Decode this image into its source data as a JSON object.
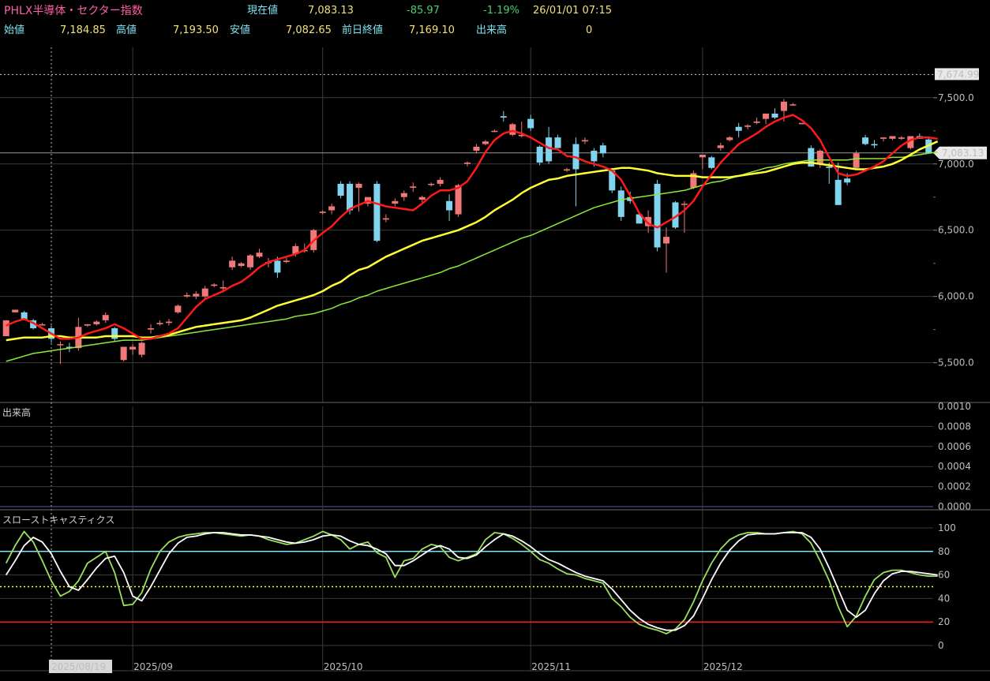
{
  "header": {
    "title": "PHLX半導体・セクター指数",
    "current_label": "現在値",
    "current_value": "7,083.13",
    "change": "-85.97",
    "change_pct": "-1.19%",
    "datetime": "26/01/01  07:15",
    "open_label": "始値",
    "open_value": "7,184.85",
    "high_label": "高値",
    "high_value": "7,193.50",
    "low_label": "安値",
    "low_value": "7,082.65",
    "prev_close_label": "前日終値",
    "prev_close_value": "7,169.10",
    "volume_label": "出来高",
    "volume_value": "0"
  },
  "colors": {
    "up": "#f07878",
    "down": "#80d4ef",
    "ma5": "#ff1a1a",
    "ma25": "#ffff33",
    "ma75": "#8ee83a",
    "k_line": "#9be05e",
    "d_line": "#ffffff",
    "grid": "#3a3a3a"
  },
  "chart_data": [
    {
      "type": "candlestick",
      "name": "price",
      "ylim": [
        5200,
        7880
      ],
      "y_ticks": [
        5500,
        6000,
        6500,
        7000,
        7500
      ],
      "y_tick_labels": [
        "5,500.0",
        "6,000.0",
        "6,500.0",
        "7,000.0",
        "7,500.0"
      ],
      "high_marker_label": "7,674.99",
      "high_marker_value": 7674.99,
      "last_price_label": "7,083.13",
      "last_price_value": 7083.13,
      "x_labels": [
        {
          "label": "2025/08/19",
          "index": 5
        },
        {
          "label": "2025/09",
          "index": 14
        },
        {
          "label": "2025/10",
          "index": 35
        },
        {
          "label": "2025/11",
          "index": 58
        },
        {
          "label": "2025/12",
          "index": 77
        }
      ],
      "ohlc": [
        [
          5700,
          5820,
          5700,
          5820
        ],
        [
          5880,
          5900,
          5880,
          5900
        ],
        [
          5880,
          5890,
          5820,
          5820
        ],
        [
          5820,
          5830,
          5750,
          5760
        ],
        [
          5790,
          5800,
          5780,
          5790
        ],
        [
          5760,
          5780,
          5650,
          5680
        ],
        [
          5640,
          5660,
          5490,
          5640
        ],
        [
          5620,
          5650,
          5580,
          5610
        ],
        [
          5610,
          5840,
          5590,
          5770
        ],
        [
          5780,
          5790,
          5770,
          5790
        ],
        [
          5790,
          5820,
          5780,
          5810
        ],
        [
          5820,
          5880,
          5800,
          5860
        ],
        [
          5760,
          5770,
          5660,
          5680
        ],
        [
          5520,
          5620,
          5510,
          5620
        ],
        [
          5600,
          5640,
          5560,
          5620
        ],
        [
          5560,
          5660,
          5540,
          5650
        ],
        [
          5750,
          5790,
          5720,
          5760
        ],
        [
          5790,
          5820,
          5780,
          5800
        ],
        [
          5800,
          5830,
          5780,
          5810
        ],
        [
          5880,
          5940,
          5870,
          5930
        ],
        [
          6000,
          6030,
          5990,
          6010
        ],
        [
          6000,
          6040,
          5980,
          6020
        ],
        [
          6000,
          6080,
          5980,
          6060
        ],
        [
          6080,
          6100,
          6070,
          6090
        ],
        [
          6060,
          6120,
          6030,
          6070
        ],
        [
          6220,
          6300,
          6200,
          6270
        ],
        [
          6230,
          6260,
          6220,
          6250
        ],
        [
          6220,
          6320,
          6200,
          6310
        ],
        [
          6300,
          6360,
          6290,
          6330
        ],
        [
          6260,
          6290,
          6220,
          6260
        ],
        [
          6270,
          6300,
          6140,
          6180
        ],
        [
          6260,
          6290,
          6250,
          6270
        ],
        [
          6320,
          6400,
          6300,
          6380
        ],
        [
          6350,
          6400,
          6330,
          6350
        ],
        [
          6350,
          6510,
          6330,
          6500
        ],
        [
          6630,
          6650,
          6620,
          6640
        ],
        [
          6650,
          6700,
          6620,
          6680
        ],
        [
          6850,
          6870,
          6740,
          6760
        ],
        [
          6850,
          6870,
          6620,
          6650
        ],
        [
          6820,
          6860,
          6640,
          6850
        ],
        [
          6700,
          6750,
          6680,
          6750
        ],
        [
          6850,
          6870,
          6410,
          6420
        ],
        [
          6580,
          6620,
          6560,
          6590
        ],
        [
          6700,
          6740,
          6680,
          6720
        ],
        [
          6750,
          6800,
          6720,
          6780
        ],
        [
          6820,
          6860,
          6790,
          6830
        ],
        [
          6730,
          6760,
          6710,
          6750
        ],
        [
          6850,
          6860,
          6830,
          6850
        ],
        [
          6850,
          6900,
          6830,
          6880
        ],
        [
          6720,
          6770,
          6570,
          6650
        ],
        [
          6620,
          6850,
          6600,
          6840
        ],
        [
          7000,
          7020,
          6980,
          7010
        ],
        [
          7100,
          7150,
          7080,
          7130
        ],
        [
          7150,
          7180,
          7140,
          7170
        ],
        [
          7250,
          7260,
          7240,
          7250
        ],
        [
          7360,
          7400,
          7320,
          7350
        ],
        [
          7220,
          7310,
          7210,
          7300
        ],
        [
          7210,
          7320,
          7200,
          7220
        ],
        [
          7340,
          7370,
          7250,
          7270
        ],
        [
          7130,
          7140,
          6990,
          7010
        ],
        [
          7200,
          7280,
          7000,
          7020
        ],
        [
          7200,
          7220,
          7120,
          7120
        ],
        [
          6950,
          6970,
          6940,
          6960
        ],
        [
          7150,
          7200,
          6680,
          6960
        ],
        [
          7170,
          7200,
          7150,
          7180
        ],
        [
          7100,
          7120,
          6980,
          7020
        ],
        [
          7140,
          7160,
          7050,
          7080
        ],
        [
          6950,
          6970,
          6780,
          6800
        ],
        [
          6800,
          6830,
          6570,
          6600
        ],
        [
          6750,
          6790,
          6700,
          6720
        ],
        [
          6620,
          6640,
          6550,
          6550
        ],
        [
          6530,
          6650,
          6480,
          6600
        ],
        [
          6850,
          6880,
          6340,
          6370
        ],
        [
          6400,
          6520,
          6180,
          6450
        ],
        [
          6710,
          6720,
          6510,
          6520
        ],
        [
          6700,
          6720,
          6480,
          6700
        ],
        [
          6820,
          6950,
          6810,
          6930
        ],
        [
          7050,
          7070,
          6960,
          7070
        ],
        [
          7050,
          7060,
          6960,
          6970
        ],
        [
          7120,
          7160,
          7100,
          7140
        ],
        [
          7180,
          7210,
          7170,
          7200
        ],
        [
          7280,
          7310,
          7200,
          7250
        ],
        [
          7280,
          7300,
          7260,
          7290
        ],
        [
          7310,
          7350,
          7300,
          7320
        ],
        [
          7340,
          7380,
          7300,
          7380
        ],
        [
          7380,
          7420,
          7340,
          7350
        ],
        [
          7400,
          7490,
          7320,
          7470
        ],
        [
          7450,
          7460,
          7440,
          7450
        ],
        [
          7300,
          7310,
          7310,
          7310
        ],
        [
          7120,
          7140,
          6980,
          6980
        ],
        [
          7000,
          7110,
          6970,
          7100
        ],
        [
          6980,
          7010,
          6850,
          6970
        ],
        [
          6880,
          7010,
          6690,
          6690
        ],
        [
          6890,
          6930,
          6840,
          6860
        ],
        [
          6970,
          7100,
          6960,
          7080
        ],
        [
          7200,
          7220,
          7140,
          7150
        ],
        [
          7150,
          7180,
          7120,
          7140
        ],
        [
          7190,
          7200,
          7170,
          7200
        ],
        [
          7190,
          7210,
          7180,
          7210
        ],
        [
          7190,
          7210,
          7180,
          7200
        ],
        [
          7120,
          7210,
          7110,
          7210
        ],
        [
          7210,
          7230,
          7190,
          7190
        ],
        [
          7184.85,
          7193.5,
          7082.65,
          7083.13
        ]
      ],
      "ma5": [
        5780,
        5810,
        5830,
        5800,
        5760,
        5720,
        5680,
        5680,
        5690,
        5720,
        5740,
        5760,
        5790,
        5760,
        5720,
        5680,
        5680,
        5700,
        5720,
        5760,
        5840,
        5920,
        5980,
        6010,
        6040,
        6080,
        6110,
        6160,
        6220,
        6260,
        6280,
        6300,
        6320,
        6350,
        6420,
        6480,
        6530,
        6600,
        6660,
        6690,
        6720,
        6700,
        6680,
        6670,
        6660,
        6650,
        6700,
        6760,
        6800,
        6800,
        6820,
        6870,
        6970,
        7090,
        7180,
        7230,
        7250,
        7230,
        7200,
        7160,
        7120,
        7110,
        7060,
        7050,
        7020,
        7000,
        6980,
        6950,
        6880,
        6760,
        6630,
        6550,
        6520,
        6560,
        6600,
        6650,
        6720,
        6830,
        6920,
        7010,
        7080,
        7150,
        7190,
        7230,
        7280,
        7320,
        7350,
        7370,
        7330,
        7270,
        7180,
        7050,
        6930,
        6910,
        6920,
        6950,
        6980,
        7020,
        7080,
        7140,
        7180,
        7200,
        7200,
        7190
      ],
      "ma25": [
        5670,
        5680,
        5690,
        5690,
        5690,
        5700,
        5700,
        5690,
        5690,
        5690,
        5690,
        5700,
        5700,
        5700,
        5700,
        5690,
        5690,
        5700,
        5710,
        5730,
        5750,
        5770,
        5780,
        5790,
        5800,
        5810,
        5820,
        5840,
        5870,
        5900,
        5930,
        5950,
        5970,
        5990,
        6010,
        6040,
        6080,
        6110,
        6160,
        6200,
        6220,
        6260,
        6300,
        6330,
        6360,
        6390,
        6420,
        6440,
        6460,
        6480,
        6500,
        6530,
        6560,
        6600,
        6650,
        6690,
        6730,
        6780,
        6820,
        6850,
        6880,
        6890,
        6910,
        6920,
        6930,
        6940,
        6950,
        6960,
        6970,
        6970,
        6960,
        6950,
        6930,
        6920,
        6910,
        6910,
        6910,
        6900,
        6900,
        6900,
        6900,
        6910,
        6920,
        6930,
        6940,
        6960,
        6980,
        7000,
        7010,
        7010,
        7000,
        6990,
        6980,
        6970,
        6960,
        6960,
        6970,
        6980,
        7000,
        7030,
        7070,
        7110,
        7140,
        7170
      ],
      "ma75": [
        5510,
        5530,
        5550,
        5570,
        5580,
        5590,
        5600,
        5610,
        5620,
        5630,
        5640,
        5650,
        5660,
        5670,
        5670,
        5670,
        5680,
        5690,
        5700,
        5710,
        5720,
        5730,
        5740,
        5750,
        5760,
        5770,
        5780,
        5790,
        5800,
        5810,
        5820,
        5830,
        5850,
        5860,
        5870,
        5890,
        5910,
        5940,
        5960,
        5990,
        6010,
        6040,
        6060,
        6080,
        6100,
        6120,
        6140,
        6160,
        6180,
        6210,
        6230,
        6260,
        6290,
        6320,
        6350,
        6380,
        6410,
        6440,
        6460,
        6490,
        6520,
        6550,
        6580,
        6610,
        6640,
        6670,
        6690,
        6710,
        6730,
        6740,
        6750,
        6760,
        6770,
        6780,
        6790,
        6800,
        6820,
        6840,
        6860,
        6870,
        6890,
        6910,
        6930,
        6950,
        6970,
        6980,
        7000,
        7010,
        7020,
        7030,
        7030,
        7030,
        7030,
        7030,
        7040,
        7040,
        7040,
        7040,
        7050,
        7050,
        7060,
        7070,
        7080,
        7090
      ]
    },
    {
      "type": "bar",
      "name": "volume",
      "title": "出来高",
      "ylim": [
        0,
        0.001
      ],
      "y_tick_labels": [
        "0.0000",
        "0.0002",
        "0.0004",
        "0.0006",
        "0.0008",
        "0.0010"
      ],
      "values": []
    },
    {
      "type": "line",
      "name": "stochastics",
      "title": "スローストキャスティクス",
      "ylim": [
        0,
        100
      ],
      "y_tick_labels": [
        "0",
        "20",
        "40",
        "60",
        "80",
        "100"
      ],
      "ref_levels": [
        {
          "value": 80,
          "color": "#7fe3f0"
        },
        {
          "value": 50,
          "color": "#ffff33",
          "style": "dotted"
        },
        {
          "value": 20,
          "color": "#ff1a1a"
        }
      ],
      "k": [
        70,
        85,
        97,
        88,
        72,
        55,
        42,
        46,
        55,
        70,
        75,
        80,
        62,
        34,
        35,
        45,
        65,
        80,
        88,
        92,
        94,
        95,
        96,
        96,
        95,
        94,
        93,
        94,
        93,
        90,
        88,
        86,
        87,
        90,
        93,
        97,
        94,
        90,
        82,
        86,
        88,
        79,
        75,
        58,
        72,
        74,
        82,
        86,
        84,
        75,
        72,
        75,
        78,
        90,
        96,
        95,
        91,
        86,
        80,
        73,
        70,
        65,
        61,
        60,
        57,
        55,
        53,
        40,
        33,
        24,
        18,
        15,
        13,
        10,
        14,
        22,
        37,
        55,
        70,
        82,
        90,
        94,
        96,
        96,
        95,
        95,
        96,
        97,
        95,
        87,
        72,
        55,
        33,
        16,
        25,
        42,
        56,
        62,
        64,
        64,
        62,
        60,
        59,
        59
      ],
      "d": [
        60,
        72,
        85,
        92,
        88,
        78,
        63,
        50,
        47,
        56,
        66,
        74,
        76,
        62,
        42,
        38,
        50,
        64,
        78,
        87,
        92,
        93,
        95,
        96,
        96,
        95,
        94,
        94,
        93,
        92,
        90,
        88,
        87,
        88,
        90,
        93,
        94,
        93,
        89,
        86,
        85,
        82,
        78,
        68,
        68,
        72,
        77,
        82,
        85,
        82,
        75,
        74,
        77,
        84,
        90,
        95,
        93,
        89,
        84,
        78,
        73,
        70,
        66,
        62,
        59,
        57,
        55,
        48,
        39,
        30,
        23,
        18,
        15,
        13,
        13,
        17,
        25,
        40,
        56,
        70,
        81,
        89,
        94,
        95,
        95,
        95,
        96,
        96,
        96,
        92,
        82,
        66,
        48,
        30,
        24,
        30,
        44,
        55,
        61,
        63,
        63,
        62,
        61,
        60
      ]
    }
  ]
}
